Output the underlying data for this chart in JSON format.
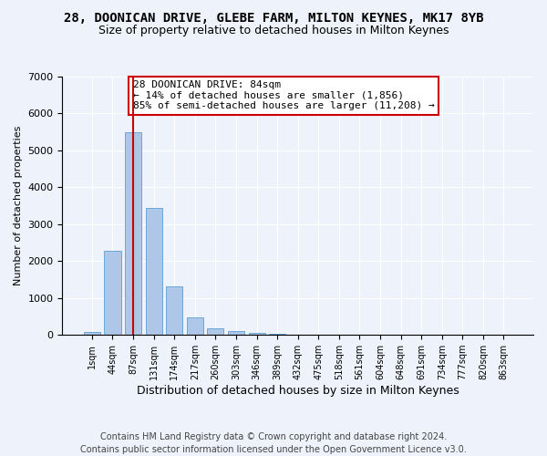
{
  "title_line1": "28, DOONICAN DRIVE, GLEBE FARM, MILTON KEYNES, MK17 8YB",
  "title_line2": "Size of property relative to detached houses in Milton Keynes",
  "xlabel": "Distribution of detached houses by size in Milton Keynes",
  "ylabel": "Number of detached properties",
  "footer_line1": "Contains HM Land Registry data © Crown copyright and database right 2024.",
  "footer_line2": "Contains public sector information licensed under the Open Government Licence v3.0.",
  "annotation_line1": "28 DOONICAN DRIVE: 84sqm",
  "annotation_line2": "← 14% of detached houses are smaller (1,856)",
  "annotation_line3": "85% of semi-detached houses are larger (11,208) →",
  "bar_color": "#aec6e8",
  "bar_edge_color": "#5a9fd4",
  "vline_color": "#cc0000",
  "annotation_box_edge": "#cc0000",
  "background_color": "#eef2fb",
  "grid_color": "#ffffff",
  "categories": [
    "1sqm",
    "44sqm",
    "87sqm",
    "131sqm",
    "174sqm",
    "217sqm",
    "260sqm",
    "303sqm",
    "346sqm",
    "389sqm",
    "432sqm",
    "475sqm",
    "518sqm",
    "561sqm",
    "604sqm",
    "648sqm",
    "691sqm",
    "734sqm",
    "777sqm",
    "820sqm",
    "863sqm"
  ],
  "values": [
    80,
    2280,
    5480,
    3450,
    1310,
    480,
    175,
    105,
    65,
    40,
    0,
    0,
    0,
    0,
    0,
    0,
    0,
    0,
    0,
    0,
    0
  ],
  "ylim": [
    0,
    7000
  ],
  "vline_x": 2,
  "title_fontsize": 10,
  "subtitle_fontsize": 9,
  "annotation_fontsize": 8,
  "ylabel_fontsize": 8,
  "xlabel_fontsize": 9,
  "tick_fontsize": 7,
  "footer_fontsize": 7
}
